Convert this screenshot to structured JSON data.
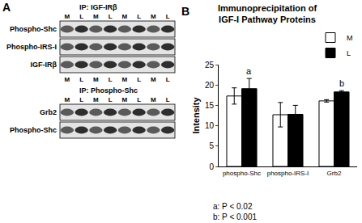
{
  "panel_a": {
    "label": "A",
    "blots": [
      {
        "title": "IP: IGF-IRβ",
        "lanes": [
          "M",
          "L",
          "M",
          "L",
          "M",
          "L",
          "M",
          "L"
        ],
        "lanes_top": true,
        "lanes_bottom": true,
        "rows": [
          "Phospho-Shc",
          "Phospho-IRS-I",
          "IGF-IRβ"
        ]
      },
      {
        "title": "IP: Phospho-Shc",
        "lanes": [
          "M",
          "L",
          "M",
          "L",
          "M",
          "L",
          "M",
          "L"
        ],
        "lanes_top": true,
        "lanes_bottom": false,
        "rows": [
          "Grb2",
          "Phospho-Shc"
        ]
      }
    ]
  },
  "chart_data": {
    "type": "bar",
    "panel_label": "B",
    "title": "Immunoprecipitation of\nIGF-I Pathway Proteins",
    "y_label": "Intensity",
    "categories": [
      "phospho-Shc",
      "phospho-IRS-I",
      "Grb2"
    ],
    "series": [
      {
        "name": "M",
        "color": "#ffffff",
        "values": [
          17.3,
          12.7,
          16.1
        ],
        "errors": [
          2.0,
          3.0,
          0.3
        ]
      },
      {
        "name": "L",
        "color": "#000000",
        "values": [
          19.1,
          12.8,
          18.3
        ],
        "errors": [
          2.5,
          2.2,
          0.3
        ]
      }
    ],
    "ylim": [
      0,
      25
    ],
    "yticks": [
      0,
      5,
      10,
      15,
      20,
      25
    ],
    "grid": false,
    "legend": "upper right",
    "annotations": [
      {
        "text": "a",
        "category": "phospho-Shc",
        "series": "L"
      },
      {
        "text": "b",
        "category": "Grb2",
        "series": "L"
      }
    ],
    "footnotes": [
      "a: P < 0.02",
      "b: P < 0.001"
    ]
  }
}
